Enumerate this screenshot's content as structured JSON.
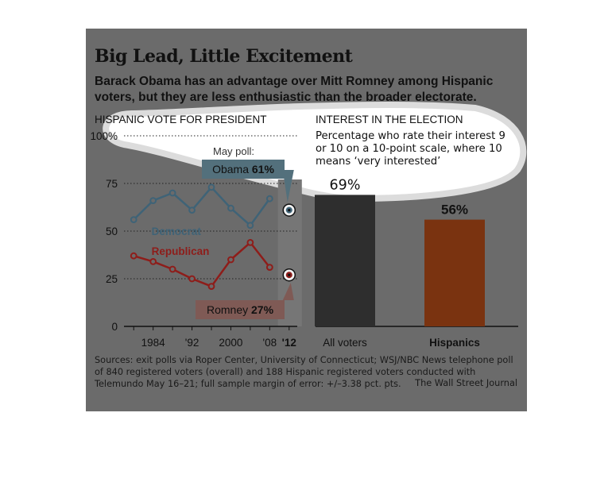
{
  "title": "Big Lead, Little Excitement",
  "subtitle": "Barack Obama has an advantage over Mitt Romney among Hispanic voters, but they are less enthusiastic than the broader electorate.",
  "colors": {
    "background": "#6b6b6b",
    "democrat": "#3f6377",
    "republican": "#8e1d1a",
    "all_voters_bar": "#2e2e2e",
    "hispanics_bar": "#7a3310",
    "callout_obama": "#53707c",
    "callout_romney": "#7f5a55"
  },
  "chart_data": [
    {
      "type": "line",
      "title": "HISPANIC VOTE FOR PRESIDENT",
      "x": [
        1980,
        1984,
        1988,
        1992,
        1996,
        2000,
        2004,
        2008
      ],
      "x_tick_labels": [
        {
          "x": 1984,
          "label": "1984",
          "bold": false
        },
        {
          "x": 1992,
          "label": "'92",
          "bold": false
        },
        {
          "x": 2000,
          "label": "2000",
          "bold": false
        },
        {
          "x": 2008,
          "label": "'08",
          "bold": false
        },
        {
          "x": 2012,
          "label": "'12",
          "bold": true
        }
      ],
      "y_ticks": [
        {
          "value": 0,
          "label": "0"
        },
        {
          "value": 25,
          "label": "25"
        },
        {
          "value": 50,
          "label": "50"
        },
        {
          "value": 75,
          "label": "75"
        },
        {
          "value": 100,
          "label": "100%"
        }
      ],
      "ylim": [
        0,
        100
      ],
      "xlim": [
        1978,
        2014
      ],
      "grid": true,
      "series": [
        {
          "name": "Democrat",
          "color": "#3f6377",
          "values": [
            56,
            66,
            70,
            61,
            73,
            62,
            53,
            67
          ]
        },
        {
          "name": "Republican",
          "color": "#8e1d1a",
          "values": [
            37,
            34,
            30,
            25,
            21,
            35,
            44,
            31
          ]
        }
      ],
      "poll": {
        "label": "May poll:",
        "x": 2012,
        "obama": {
          "name": "Obama",
          "value": 61,
          "value_label": "61%"
        },
        "romney": {
          "name": "Romney",
          "value": 27,
          "value_label": "27%"
        }
      }
    },
    {
      "type": "bar",
      "title": "INTEREST IN THE ELECTION",
      "note": "Percentage who rate their interest 9 or 10 on a 10-point scale, where 10 means ‘very interested’",
      "categories": [
        "All voters",
        "Hispanics"
      ],
      "category_bold": [
        false,
        true
      ],
      "values": [
        69,
        56
      ],
      "value_labels": [
        "69%",
        "56%"
      ],
      "colors": [
        "#2e2e2e",
        "#7a3310"
      ],
      "ylim": [
        0,
        100
      ]
    }
  ],
  "footer": {
    "sources": "Sources: exit polls via Roper Center, University of Connecticut; WSJ/NBC News telephone poll of 840 registered voters (overall) and 188 Hispanic registered voters conducted with Telemundo May 16–21; full sample margin of error: +/–3.38 pct. pts.",
    "credit": "The Wall Street Journal"
  }
}
